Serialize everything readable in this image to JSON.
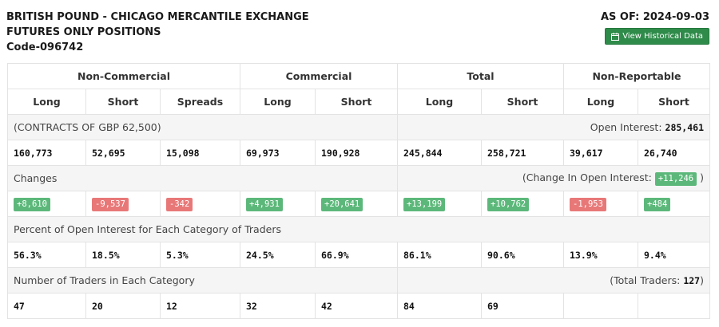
{
  "header": {
    "title_line1": "BRITISH POUND - CHICAGO MERCANTILE EXCHANGE",
    "title_line2": "FUTURES ONLY POSITIONS",
    "code": "Code-096742",
    "as_of": "AS OF: 2024-09-03",
    "history_button": "View Historical Data",
    "history_icon": "calendar-icon",
    "button_color": "#2e8b4a"
  },
  "table": {
    "groups": [
      "Non-Commercial",
      "Commercial",
      "Total",
      "Non-Reportable"
    ],
    "columns": [
      "Long",
      "Short",
      "Spreads",
      "Long",
      "Short",
      "Long",
      "Short",
      "Long",
      "Short"
    ],
    "contracts_label": "(CONTRACTS OF GBP 62,500)",
    "open_interest_label": "Open Interest:",
    "open_interest_value": "285,461",
    "positions": [
      "160,773",
      "52,695",
      "15,098",
      "69,973",
      "190,928",
      "245,844",
      "258,721",
      "39,617",
      "26,740"
    ],
    "changes_label": "Changes",
    "change_oi_prefix": "(Change In Open Interest:",
    "change_oi_value": "+11,246",
    "change_oi_suffix": ")",
    "changes": [
      {
        "value": "+8,610",
        "sign": "pos"
      },
      {
        "value": "-9,537",
        "sign": "neg"
      },
      {
        "value": "-342",
        "sign": "neg"
      },
      {
        "value": "+4,931",
        "sign": "pos"
      },
      {
        "value": "+20,641",
        "sign": "pos"
      },
      {
        "value": "+13,199",
        "sign": "pos"
      },
      {
        "value": "+10,762",
        "sign": "pos"
      },
      {
        "value": "-1,953",
        "sign": "neg"
      },
      {
        "value": "+484",
        "sign": "pos"
      }
    ],
    "percent_label": "Percent of Open Interest for Each Category of Traders",
    "percents": [
      "56.3%",
      "18.5%",
      "5.3%",
      "24.5%",
      "66.9%",
      "86.1%",
      "90.6%",
      "13.9%",
      "9.4%"
    ],
    "traders_label": "Number of Traders in Each Category",
    "total_traders_prefix": "(Total Traders:",
    "total_traders_value": "127",
    "total_traders_suffix": ")",
    "traders": [
      "47",
      "20",
      "12",
      "32",
      "42",
      "84",
      "69",
      "",
      ""
    ]
  },
  "colors": {
    "positive": "#5cb87a",
    "negative": "#e87878",
    "shade": "#f5f5f5"
  }
}
